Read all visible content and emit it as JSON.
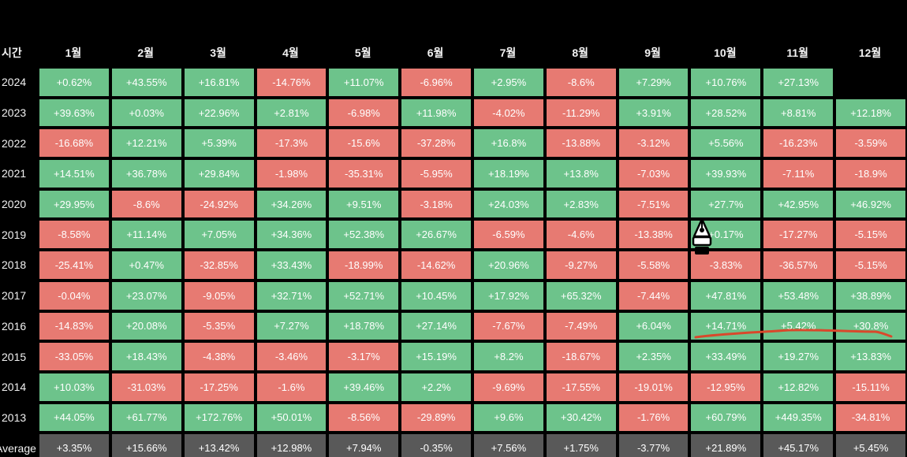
{
  "header": {
    "corner_label": "시간",
    "months": [
      "1월",
      "2월",
      "3월",
      "4월",
      "5월",
      "6월",
      "7월",
      "8월",
      "9월",
      "10월",
      "11월",
      "12월"
    ]
  },
  "rows": [
    {
      "year": "2024",
      "values": [
        "+0.62%",
        "+43.55%",
        "+16.81%",
        "-14.76%",
        "+11.07%",
        "-6.96%",
        "+2.95%",
        "-8.6%",
        "+7.29%",
        "+10.76%",
        "+27.13%",
        ""
      ]
    },
    {
      "year": "2023",
      "values": [
        "+39.63%",
        "+0.03%",
        "+22.96%",
        "+2.81%",
        "-6.98%",
        "+11.98%",
        "-4.02%",
        "-11.29%",
        "+3.91%",
        "+28.52%",
        "+8.81%",
        "+12.18%"
      ]
    },
    {
      "year": "2022",
      "values": [
        "-16.68%",
        "+12.21%",
        "+5.39%",
        "-17.3%",
        "-15.6%",
        "-37.28%",
        "+16.8%",
        "-13.88%",
        "-3.12%",
        "+5.56%",
        "-16.23%",
        "-3.59%"
      ]
    },
    {
      "year": "2021",
      "values": [
        "+14.51%",
        "+36.78%",
        "+29.84%",
        "-1.98%",
        "-35.31%",
        "-5.95%",
        "+18.19%",
        "+13.8%",
        "-7.03%",
        "+39.93%",
        "-7.11%",
        "-18.9%"
      ]
    },
    {
      "year": "2020",
      "values": [
        "+29.95%",
        "-8.6%",
        "-24.92%",
        "+34.26%",
        "+9.51%",
        "-3.18%",
        "+24.03%",
        "+2.83%",
        "-7.51%",
        "+27.7%",
        "+42.95%",
        "+46.92%"
      ]
    },
    {
      "year": "2019",
      "values": [
        "-8.58%",
        "+11.14%",
        "+7.05%",
        "+34.36%",
        "+52.38%",
        "+26.67%",
        "-6.59%",
        "-4.6%",
        "-13.38%",
        "+0.17%",
        "-17.27%",
        "-5.15%"
      ]
    },
    {
      "year": "2018",
      "values": [
        "-25.41%",
        "+0.47%",
        "-32.85%",
        "+33.43%",
        "-18.99%",
        "-14.62%",
        "+20.96%",
        "-9.27%",
        "-5.58%",
        "-3.83%",
        "-36.57%",
        "-5.15%"
      ]
    },
    {
      "year": "2017",
      "values": [
        "-0.04%",
        "+23.07%",
        "-9.05%",
        "+32.71%",
        "+52.71%",
        "+10.45%",
        "+17.92%",
        "+65.32%",
        "-7.44%",
        "+47.81%",
        "+53.48%",
        "+38.89%"
      ]
    },
    {
      "year": "2016",
      "values": [
        "-14.83%",
        "+20.08%",
        "-5.35%",
        "+7.27%",
        "+18.78%",
        "+27.14%",
        "-7.67%",
        "-7.49%",
        "+6.04%",
        "+14.71%",
        "+5.42%",
        "+30.8%"
      ]
    },
    {
      "year": "2015",
      "values": [
        "-33.05%",
        "+18.43%",
        "-4.38%",
        "-3.46%",
        "-3.17%",
        "+15.19%",
        "+8.2%",
        "-18.67%",
        "+2.35%",
        "+33.49%",
        "+19.27%",
        "+13.83%"
      ]
    },
    {
      "year": "2014",
      "values": [
        "+10.03%",
        "-31.03%",
        "-17.25%",
        "-1.6%",
        "+39.46%",
        "+2.2%",
        "-9.69%",
        "-17.55%",
        "-19.01%",
        "-12.95%",
        "+12.82%",
        "-15.11%"
      ]
    },
    {
      "year": "2013",
      "values": [
        "+44.05%",
        "+61.77%",
        "+172.76%",
        "+50.01%",
        "-8.56%",
        "-29.89%",
        "+9.6%",
        "+30.42%",
        "-1.76%",
        "+60.79%",
        "+449.35%",
        "-34.81%"
      ]
    }
  ],
  "average": {
    "label": "Average",
    "values": [
      "+3.35%",
      "+15.66%",
      "+13.42%",
      "+12.98%",
      "+7.94%",
      "-0.35%",
      "+7.56%",
      "+1.75%",
      "-3.77%",
      "+21.89%",
      "+45.17%",
      "+5.45%"
    ]
  },
  "colors": {
    "positive": "#6dc38b",
    "negative": "#e77a72",
    "average": "#595959",
    "annotation_stroke": "#d9482b"
  },
  "annotations": {
    "cursor_icon": "pen-nib-icon",
    "underline": "red freehand underline"
  }
}
